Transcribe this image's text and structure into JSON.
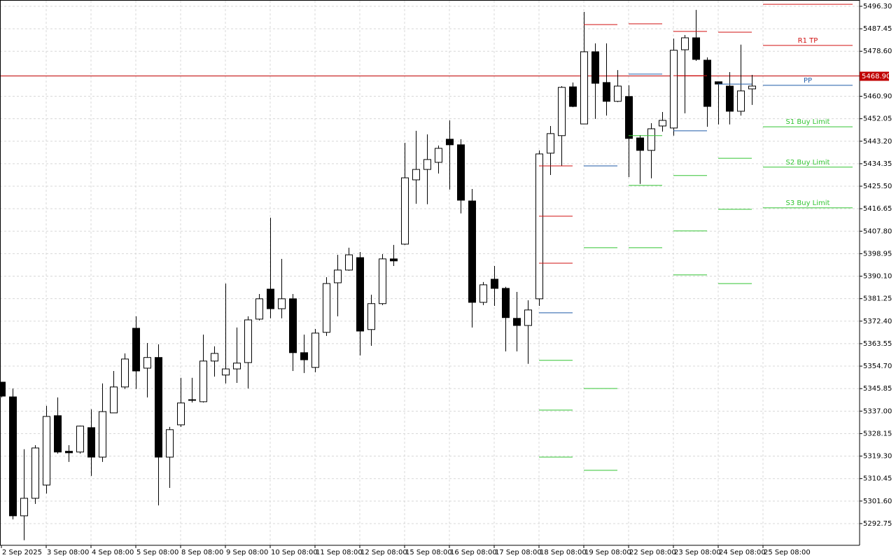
{
  "chart_data": {
    "type": "candlestick",
    "ylim": [
      5284.2,
      5498.5
    ],
    "yticks": [
      {
        "value": 5496.3,
        "label": "5496.30"
      },
      5487.45,
      {
        "value": 5478.6,
        "label": "5478.60"
      },
      {
        "value": 5460.9,
        "label": "5460.90"
      },
      5452.05,
      {
        "value": 5443.2,
        "label": "5443.20"
      },
      5434.35,
      {
        "value": 5425.5,
        "label": "5425.50"
      },
      5416.65,
      {
        "value": 5407.8,
        "label": "5407.80"
      },
      5398.95,
      {
        "value": 5390.1,
        "label": "5390.10"
      },
      5381.25,
      {
        "value": 5372.4,
        "label": "5372.40"
      },
      5363.55,
      {
        "value": 5354.7,
        "label": "5354.70"
      },
      5345.85,
      {
        "value": 5337,
        "label": "5337.00"
      },
      5328.15,
      {
        "value": 5319.3,
        "label": "5319.30"
      },
      5310.45,
      {
        "value": 5301.6,
        "label": "5301.60"
      },
      5292.75
    ],
    "xticks": [
      "2 Sep 2025",
      "3 Sep 08:00",
      "4 Sep 08:00",
      "5 Sep 08:00",
      "8 Sep 08:00",
      "9 Sep 08:00",
      "10 Sep 08:00",
      "11 Sep 08:00",
      "12 Sep 08:00",
      "15 Sep 08:00",
      "16 Sep 08:00",
      "17 Sep 08:00",
      "18 Sep 08:00",
      "19 Sep 08:00",
      "22 Sep 08:00",
      "23 Sep 08:00",
      "24 Sep 08:00",
      "25 Sep 08:00"
    ],
    "open": [
      5348.4,
      5342.6,
      5295.8,
      5302.7,
      5307.9,
      5335.2,
      5321.2,
      5320.9,
      5330.5,
      5318.9,
      5336.3,
      5346.5,
      5369.6,
      5353.9,
      5358.1,
      5318.9,
      5331.6,
      5341.3,
      5340.7,
      5356.7,
      5351.2,
      5353.6,
      5356.1,
      5373.2,
      5385.0,
      5377.3,
      5381.2,
      5360.0,
      5354.2,
      5368.0,
      5387.5,
      5392.5,
      5397.4,
      5369.1,
      5379.3,
      5396.9,
      5402.7,
      5428.0,
      5432.1,
      5434.9,
      5444.0,
      5441.8,
      5419.7,
      5379.8,
      5388.9,
      5385.3,
      5373.5,
      5370.7,
      5381.2,
      5438.5,
      5445.4,
      5464.6,
      5450.0,
      5478.4,
      5466.3,
      5458.9,
      5460.8,
      5444.5,
      5439.6,
      5449.2,
      5448.4,
      5479.2,
      5483.9,
      5475.1,
      5466.6,
      5464.9,
      5455.0,
      5463.8
    ],
    "high": [
      5348.4,
      5345.9,
      5322.0,
      5323.6,
      5339.1,
      5342.4,
      5323.6,
      5331.3,
      5337.7,
      5347.9,
      5352.8,
      5359.7,
      5374.3,
      5363.8,
      5363.3,
      5330.8,
      5350.1,
      5350.1,
      5367.1,
      5362.5,
      5387.2,
      5369.9,
      5374.3,
      5383.1,
      5413.1,
      5396.9,
      5383.1,
      5367.1,
      5369.3,
      5389.7,
      5398.5,
      5401.3,
      5399.6,
      5382.8,
      5398.8,
      5402.4,
      5442.6,
      5447.3,
      5445.9,
      5441.5,
      5451.4,
      5444.0,
      5424.4,
      5387.8,
      5394.1,
      5385.9,
      5383.9,
      5380.6,
      5439.6,
      5449.2,
      5464.9,
      5466.3,
      5494.1,
      5481.7,
      5481.7,
      5471.2,
      5465.2,
      5445.6,
      5450.3,
      5454.7,
      5483.6,
      5485.0,
      5494.9,
      5476.2,
      5466.6,
      5470.4,
      5481.2,
      5469.3
    ],
    "low": [
      5342.4,
      5294.4,
      5286.2,
      5300.5,
      5304.6,
      5320.3,
      5317.0,
      5320.3,
      5311.5,
      5317.0,
      5336.3,
      5345.7,
      5345.7,
      5342.4,
      5299.9,
      5306.8,
      5330.8,
      5340.4,
      5340.4,
      5350.6,
      5347.9,
      5348.1,
      5345.9,
      5372.7,
      5373.5,
      5373.5,
      5352.8,
      5352.0,
      5352.3,
      5366.6,
      5374.3,
      5392.2,
      5358.9,
      5362.7,
      5378.7,
      5394.1,
      5402.4,
      5418.6,
      5418.4,
      5430.5,
      5424.2,
      5414.8,
      5369.9,
      5378.7,
      5378.4,
      5360.5,
      5360.5,
      5355.6,
      5378.4,
      5429.9,
      5433.5,
      5456.6,
      5450.0,
      5452.0,
      5453.3,
      5458.6,
      5429.1,
      5426.4,
      5428.6,
      5447.0,
      5445.4,
      5454.2,
      5474.8,
      5448.9,
      5449.8,
      5449.8,
      5453.3,
      5457.5
    ],
    "close": [
      5342.9,
      5295.8,
      5302.7,
      5322.5,
      5334.9,
      5320.9,
      5320.6,
      5331.1,
      5318.9,
      5336.8,
      5346.5,
      5357.5,
      5352.8,
      5358.1,
      5318.9,
      5329.7,
      5340.2,
      5341.5,
      5356.7,
      5359.7,
      5353.6,
      5355.9,
      5372.9,
      5381.2,
      5377.3,
      5381.2,
      5360.0,
      5357.2,
      5367.7,
      5387.2,
      5392.5,
      5398.5,
      5368.5,
      5379.3,
      5396.9,
      5396.1,
      5428.8,
      5432.1,
      5436.0,
      5440.4,
      5441.8,
      5420.0,
      5379.8,
      5386.7,
      5385.3,
      5373.8,
      5370.7,
      5376.8,
      5438.2,
      5446.2,
      5464.4,
      5456.9,
      5478.4,
      5466.0,
      5458.9,
      5464.9,
      5444.3,
      5439.6,
      5448.1,
      5451.4,
      5479.0,
      5483.9,
      5475.4,
      5456.9,
      5465.7,
      5455.0,
      5463.0,
      5464.9
    ],
    "up_color": "#ffffff",
    "down_color": "#000000",
    "grid": true,
    "current_price": {
      "value": 5468.9,
      "label": "5468.90"
    },
    "current_price_color": "#c00000",
    "resistance_color": "#d01010",
    "pivot_color": "#1f5aa6",
    "support_color": "#33c433",
    "pivots": [
      {
        "resistance": [
          5433.5,
          5413.7,
          5395.2
        ],
        "pivot": 5375.7,
        "support": [
          5357.0,
          5337.4,
          5318.9
        ]
      },
      {
        "resistance": [
          5489.1
        ],
        "pivot": 5433.5,
        "support": [
          5401.3,
          5345.9,
          5313.7
        ]
      },
      {
        "resistance": [
          5489.4
        ],
        "pivot": 5469.6,
        "support": [
          5445.4,
          5425.8,
          5401.3
        ]
      },
      {
        "resistance": [
          5486.4,
          5469.0
        ],
        "pivot": 5447.3,
        "support": [
          5429.7,
          5407.9,
          5390.6
        ]
      },
      {
        "resistance": [
          5486.1
        ],
        "pivot": 5465.7,
        "support": [
          5436.5,
          5416.4,
          5387.2
        ]
      },
      {
        "resistance": [
          5497.1,
          5480.9
        ],
        "pivot": 5465.2,
        "support": [
          5448.9,
          5433.0,
          5417.0
        ],
        "resistance_labels": [
          null,
          "R1 TP"
        ],
        "pivot_label": "PP",
        "support_labels": [
          "S1 Buy Limit",
          "S2 Buy Limit",
          "S3 Buy Limit"
        ]
      }
    ]
  }
}
